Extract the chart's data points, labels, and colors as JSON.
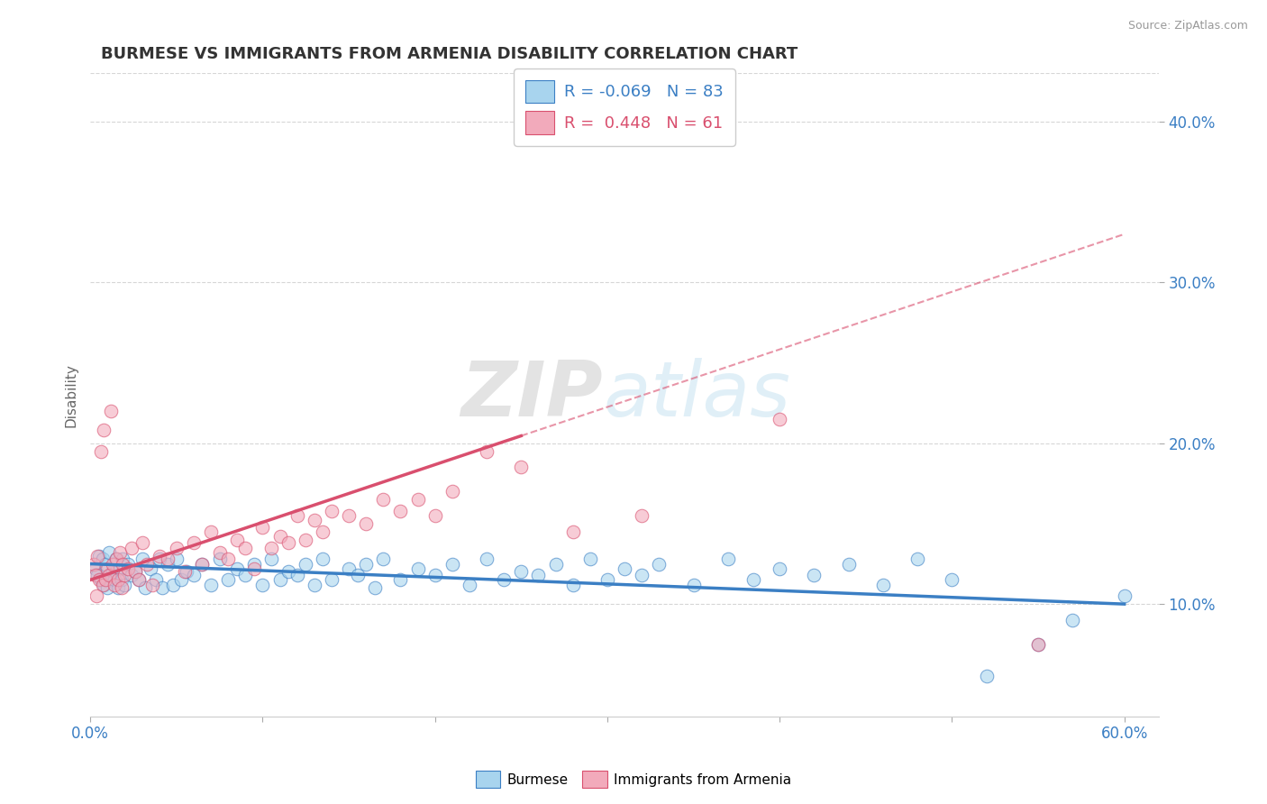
{
  "title": "BURMESE VS IMMIGRANTS FROM ARMENIA DISABILITY CORRELATION CHART",
  "source_text": "Source: ZipAtlas.com",
  "ylabel": "Disability",
  "watermark": "ZIPatlas",
  "xlim": [
    0.0,
    62.0
  ],
  "ylim": [
    3.0,
    43.0
  ],
  "yticks": [
    10.0,
    20.0,
    30.0,
    40.0
  ],
  "blue_r": "-0.069",
  "blue_n": "83",
  "pink_r": "0.448",
  "pink_n": "61",
  "blue_color": "#A8D4EE",
  "pink_color": "#F2AABB",
  "blue_line_color": "#3B7FC4",
  "pink_line_color": "#D94F6E",
  "blue_scatter": [
    [
      0.3,
      12.2
    ],
    [
      0.4,
      11.8
    ],
    [
      0.5,
      13.0
    ],
    [
      0.6,
      11.5
    ],
    [
      0.7,
      12.8
    ],
    [
      0.8,
      11.2
    ],
    [
      0.9,
      12.5
    ],
    [
      1.0,
      11.0
    ],
    [
      1.1,
      13.2
    ],
    [
      1.2,
      11.8
    ],
    [
      1.3,
      12.0
    ],
    [
      1.4,
      11.5
    ],
    [
      1.5,
      12.8
    ],
    [
      1.6,
      11.0
    ],
    [
      1.7,
      12.2
    ],
    [
      1.8,
      11.5
    ],
    [
      1.9,
      12.8
    ],
    [
      2.0,
      11.2
    ],
    [
      2.2,
      12.5
    ],
    [
      2.4,
      11.8
    ],
    [
      2.6,
      12.0
    ],
    [
      2.8,
      11.5
    ],
    [
      3.0,
      12.8
    ],
    [
      3.2,
      11.0
    ],
    [
      3.5,
      12.2
    ],
    [
      3.8,
      11.5
    ],
    [
      4.0,
      12.8
    ],
    [
      4.2,
      11.0
    ],
    [
      4.5,
      12.5
    ],
    [
      4.8,
      11.2
    ],
    [
      5.0,
      12.8
    ],
    [
      5.3,
      11.5
    ],
    [
      5.6,
      12.0
    ],
    [
      6.0,
      11.8
    ],
    [
      6.5,
      12.5
    ],
    [
      7.0,
      11.2
    ],
    [
      7.5,
      12.8
    ],
    [
      8.0,
      11.5
    ],
    [
      8.5,
      12.2
    ],
    [
      9.0,
      11.8
    ],
    [
      9.5,
      12.5
    ],
    [
      10.0,
      11.2
    ],
    [
      10.5,
      12.8
    ],
    [
      11.0,
      11.5
    ],
    [
      11.5,
      12.0
    ],
    [
      12.0,
      11.8
    ],
    [
      12.5,
      12.5
    ],
    [
      13.0,
      11.2
    ],
    [
      13.5,
      12.8
    ],
    [
      14.0,
      11.5
    ],
    [
      15.0,
      12.2
    ],
    [
      15.5,
      11.8
    ],
    [
      16.0,
      12.5
    ],
    [
      16.5,
      11.0
    ],
    [
      17.0,
      12.8
    ],
    [
      18.0,
      11.5
    ],
    [
      19.0,
      12.2
    ],
    [
      20.0,
      11.8
    ],
    [
      21.0,
      12.5
    ],
    [
      22.0,
      11.2
    ],
    [
      23.0,
      12.8
    ],
    [
      24.0,
      11.5
    ],
    [
      25.0,
      12.0
    ],
    [
      26.0,
      11.8
    ],
    [
      27.0,
      12.5
    ],
    [
      28.0,
      11.2
    ],
    [
      29.0,
      12.8
    ],
    [
      30.0,
      11.5
    ],
    [
      31.0,
      12.2
    ],
    [
      32.0,
      11.8
    ],
    [
      33.0,
      12.5
    ],
    [
      35.0,
      11.2
    ],
    [
      37.0,
      12.8
    ],
    [
      38.5,
      11.5
    ],
    [
      40.0,
      12.2
    ],
    [
      42.0,
      11.8
    ],
    [
      44.0,
      12.5
    ],
    [
      46.0,
      11.2
    ],
    [
      48.0,
      12.8
    ],
    [
      50.0,
      11.5
    ],
    [
      52.0,
      5.5
    ],
    [
      55.0,
      7.5
    ],
    [
      57.0,
      9.0
    ],
    [
      60.0,
      10.5
    ]
  ],
  "pink_scatter": [
    [
      0.2,
      12.5
    ],
    [
      0.3,
      11.8
    ],
    [
      0.4,
      13.0
    ],
    [
      0.5,
      11.5
    ],
    [
      0.6,
      19.5
    ],
    [
      0.7,
      11.2
    ],
    [
      0.8,
      20.8
    ],
    [
      0.9,
      11.5
    ],
    [
      1.0,
      12.2
    ],
    [
      1.1,
      11.8
    ],
    [
      1.2,
      22.0
    ],
    [
      1.3,
      12.5
    ],
    [
      1.4,
      11.2
    ],
    [
      1.5,
      12.8
    ],
    [
      1.6,
      11.5
    ],
    [
      1.7,
      13.2
    ],
    [
      1.8,
      11.0
    ],
    [
      1.9,
      12.5
    ],
    [
      2.0,
      11.8
    ],
    [
      2.2,
      12.2
    ],
    [
      2.4,
      13.5
    ],
    [
      2.6,
      12.0
    ],
    [
      2.8,
      11.5
    ],
    [
      3.0,
      13.8
    ],
    [
      3.3,
      12.5
    ],
    [
      3.6,
      11.2
    ],
    [
      4.0,
      13.0
    ],
    [
      4.5,
      12.8
    ],
    [
      5.0,
      13.5
    ],
    [
      5.5,
      12.0
    ],
    [
      6.0,
      13.8
    ],
    [
      6.5,
      12.5
    ],
    [
      7.0,
      14.5
    ],
    [
      7.5,
      13.2
    ],
    [
      8.0,
      12.8
    ],
    [
      8.5,
      14.0
    ],
    [
      9.0,
      13.5
    ],
    [
      9.5,
      12.2
    ],
    [
      10.0,
      14.8
    ],
    [
      10.5,
      13.5
    ],
    [
      11.0,
      14.2
    ],
    [
      11.5,
      13.8
    ],
    [
      12.0,
      15.5
    ],
    [
      12.5,
      14.0
    ],
    [
      13.0,
      15.2
    ],
    [
      13.5,
      14.5
    ],
    [
      14.0,
      15.8
    ],
    [
      15.0,
      15.5
    ],
    [
      16.0,
      15.0
    ],
    [
      17.0,
      16.5
    ],
    [
      18.0,
      15.8
    ],
    [
      19.0,
      16.5
    ],
    [
      20.0,
      15.5
    ],
    [
      21.0,
      17.0
    ],
    [
      23.0,
      19.5
    ],
    [
      25.0,
      18.5
    ],
    [
      28.0,
      14.5
    ],
    [
      32.0,
      15.5
    ],
    [
      40.0,
      21.5
    ],
    [
      55.0,
      7.5
    ],
    [
      0.35,
      10.5
    ]
  ],
  "blue_line_pts": [
    [
      0,
      12.5
    ],
    [
      60,
      10.0
    ]
  ],
  "pink_line_pts": [
    [
      0,
      11.5
    ],
    [
      60,
      33.0
    ]
  ]
}
